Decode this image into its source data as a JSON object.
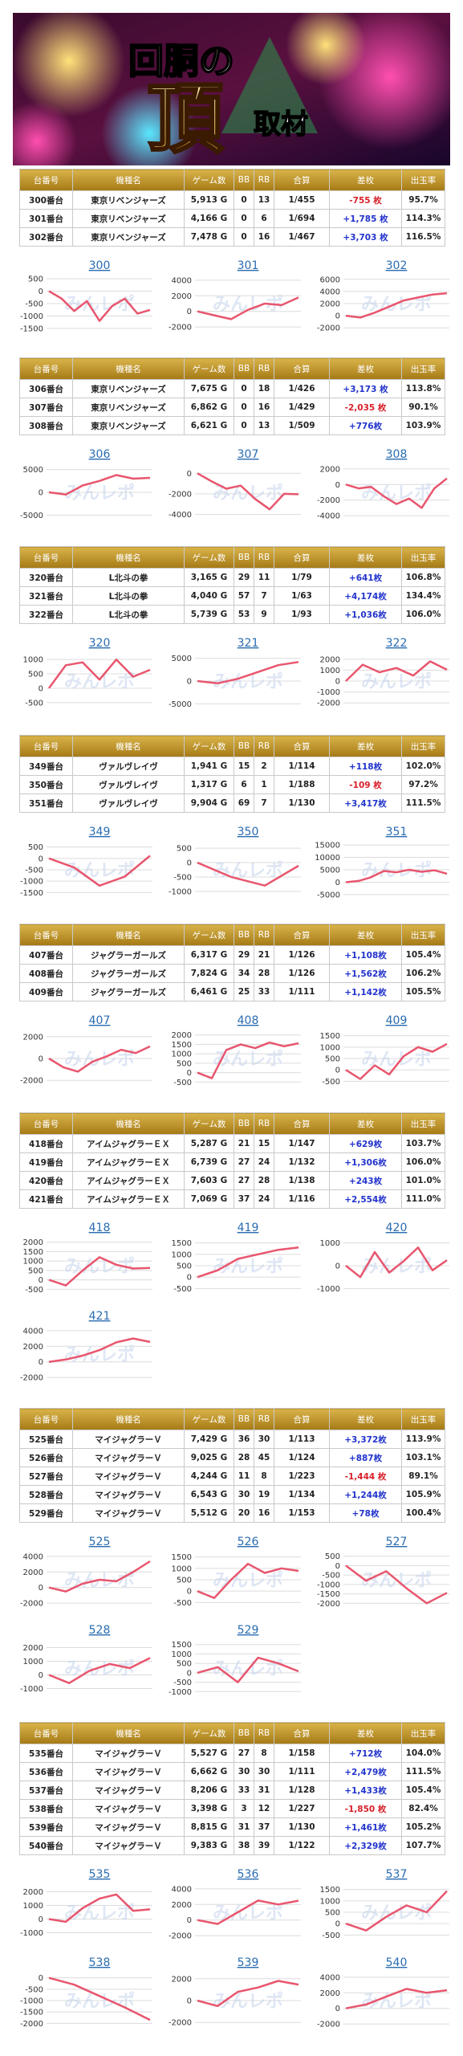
{
  "banner": {
    "title": "回胴の",
    "big": "頂",
    "sub": "取材"
  },
  "watermark": "みんレポ",
  "table_headers": [
    "台番号",
    "機種名",
    "ゲーム数",
    "BB",
    "RB",
    "合算",
    "差枚",
    "出玉率"
  ],
  "sections": [
    {
      "table": {
        "rows": [
          [
            "300番台",
            "東京リベンジャーズ",
            "5,913 G",
            "0",
            "13",
            "1/455",
            "-755 枚",
            "95.7%"
          ],
          [
            "301番台",
            "東京リベンジャーズ",
            "4,166 G",
            "0",
            "6",
            "1/694",
            "+1,785 枚",
            "114.3%"
          ],
          [
            "302番台",
            "東京リベンジャーズ",
            "7,478 G",
            "0",
            "16",
            "1/467",
            "+3,703 枚",
            "116.5%"
          ]
        ]
      },
      "charts": [
        {
          "type": "line",
          "title": "300",
          "ylim": [
            -1600,
            600
          ],
          "yticks": [
            500,
            0,
            -500,
            -1000,
            -1500
          ],
          "values": [
            0,
            -300,
            -800,
            -400,
            -1200,
            -600,
            -300,
            -900,
            -755
          ]
        },
        {
          "type": "line",
          "title": "301",
          "ylim": [
            -2500,
            4500
          ],
          "yticks": [
            4000,
            2000,
            0,
            -2000
          ],
          "values": [
            0,
            -500,
            -1000,
            200,
            1000,
            800,
            1785
          ]
        },
        {
          "type": "line",
          "title": "302",
          "ylim": [
            -2500,
            6500
          ],
          "yticks": [
            6000,
            4000,
            2000,
            0,
            -2000
          ],
          "values": [
            0,
            -300,
            500,
            1500,
            2500,
            3000,
            3500,
            3703
          ]
        }
      ]
    },
    {
      "table": {
        "rows": [
          [
            "306番台",
            "東京リベンジャーズ",
            "7,675 G",
            "0",
            "18",
            "1/426",
            "+3,173 枚",
            "113.8%"
          ],
          [
            "307番台",
            "東京リベンジャーズ",
            "6,862 G",
            "0",
            "16",
            "1/429",
            "-2,035 枚",
            "90.1%"
          ],
          [
            "308番台",
            "東京リベンジャーズ",
            "6,621 G",
            "0",
            "13",
            "1/509",
            "+776枚",
            "103.9%"
          ]
        ]
      },
      "charts": [
        {
          "type": "line",
          "title": "306",
          "ylim": [
            -6000,
            6000
          ],
          "yticks": [
            5000,
            0,
            -5000
          ],
          "values": [
            0,
            -500,
            1500,
            2500,
            3800,
            3000,
            3173
          ]
        },
        {
          "type": "line",
          "title": "307",
          "ylim": [
            -4500,
            800
          ],
          "yticks": [
            0,
            -2000,
            -4000
          ],
          "values": [
            0,
            -800,
            -1500,
            -1200,
            -2500,
            -3500,
            -2000,
            -2035
          ]
        },
        {
          "type": "line",
          "title": "308",
          "ylim": [
            -4500,
            2500
          ],
          "yticks": [
            2000,
            0,
            -2000,
            -4000
          ],
          "values": [
            0,
            -500,
            -300,
            -1500,
            -2500,
            -1800,
            -3000,
            -500,
            776
          ]
        }
      ]
    },
    {
      "table": {
        "rows": [
          [
            "320番台",
            "L北斗の拳",
            "3,165 G",
            "29",
            "11",
            "1/79",
            "+641枚",
            "106.8%"
          ],
          [
            "321番台",
            "L北斗の拳",
            "4,040 G",
            "57",
            "7",
            "1/63",
            "+4,174枚",
            "134.4%"
          ],
          [
            "322番台",
            "L北斗の拳",
            "5,739 G",
            "53",
            "9",
            "1/93",
            "+1,036枚",
            "106.0%"
          ]
        ]
      },
      "charts": [
        {
          "type": "line",
          "title": "320",
          "ylim": [
            -700,
            1200
          ],
          "yticks": [
            1000,
            500,
            0,
            -500
          ],
          "values": [
            0,
            800,
            900,
            300,
            1000,
            400,
            641
          ]
        },
        {
          "type": "line",
          "title": "321",
          "ylim": [
            -6000,
            6000
          ],
          "yticks": [
            5000,
            0,
            -5000
          ],
          "values": [
            0,
            -500,
            500,
            2000,
            3500,
            4174
          ]
        },
        {
          "type": "line",
          "title": "322",
          "ylim": [
            -2500,
            2500
          ],
          "yticks": [
            2000,
            1000,
            0,
            -1000,
            -2000
          ],
          "values": [
            0,
            1500,
            800,
            1200,
            500,
            1800,
            1036
          ]
        }
      ]
    },
    {
      "table": {
        "rows": [
          [
            "349番台",
            "ヴァルヴレイヴ",
            "1,941 G",
            "15",
            "2",
            "1/114",
            "+118枚",
            "102.0%"
          ],
          [
            "350番台",
            "ヴァルヴレイヴ",
            "1,317 G",
            "6",
            "1",
            "1/188",
            "-109 枚",
            "97.2%"
          ],
          [
            "351番台",
            "ヴァルヴレイヴ",
            "9,904 G",
            "69",
            "7",
            "1/130",
            "+3,417枚",
            "111.5%"
          ]
        ]
      },
      "charts": [
        {
          "type": "line",
          "title": "349",
          "ylim": [
            -1700,
            700
          ],
          "yticks": [
            500,
            0,
            -500,
            -1000,
            -1500
          ],
          "values": [
            0,
            -400,
            -1200,
            -800,
            118
          ]
        },
        {
          "type": "line",
          "title": "350",
          "ylim": [
            -1200,
            700
          ],
          "yticks": [
            500,
            0,
            -500,
            -1000
          ],
          "values": [
            0,
            -500,
            -800,
            -109
          ]
        },
        {
          "type": "line",
          "title": "351",
          "ylim": [
            -6000,
            16000
          ],
          "yticks": [
            15000,
            10000,
            5000,
            0,
            -5000
          ],
          "values": [
            0,
            500,
            2000,
            4500,
            4000,
            5000,
            4200,
            4800,
            3417
          ]
        }
      ]
    },
    {
      "table": {
        "rows": [
          [
            "407番台",
            "ジャグラーガールズ",
            "6,317 G",
            "29",
            "21",
            "1/126",
            "+1,108枚",
            "105.4%"
          ],
          [
            "408番台",
            "ジャグラーガールズ",
            "7,824 G",
            "34",
            "28",
            "1/126",
            "+1,562枚",
            "106.2%"
          ],
          [
            "409番台",
            "ジャグラーガールズ",
            "6,461 G",
            "25",
            "33",
            "1/111",
            "+1,142枚",
            "105.5%"
          ]
        ]
      },
      "charts": [
        {
          "type": "line",
          "title": "407",
          "ylim": [
            -2500,
            2500
          ],
          "yticks": [
            2000,
            0,
            -2000
          ],
          "values": [
            0,
            -800,
            -1200,
            -300,
            200,
            800,
            500,
            1108
          ]
        },
        {
          "type": "line",
          "title": "408",
          "ylim": [
            -700,
            2200
          ],
          "yticks": [
            2000,
            1500,
            1000,
            500,
            0,
            -500
          ],
          "values": [
            0,
            -300,
            1200,
            1500,
            1300,
            1600,
            1400,
            1562
          ]
        },
        {
          "type": "line",
          "title": "409",
          "ylim": [
            -700,
            1700
          ],
          "yticks": [
            1500,
            1000,
            500,
            0,
            -500
          ],
          "values": [
            0,
            -400,
            200,
            -200,
            600,
            1000,
            800,
            1142
          ]
        }
      ]
    },
    {
      "table": {
        "rows": [
          [
            "418番台",
            "アイムジャグラーＥＸ",
            "5,287 G",
            "21",
            "15",
            "1/147",
            "+629枚",
            "103.7%"
          ],
          [
            "419番台",
            "アイムジャグラーＥＸ",
            "6,739 G",
            "27",
            "24",
            "1/132",
            "+1,306枚",
            "106.0%"
          ],
          [
            "420番台",
            "アイムジャグラーＥＸ",
            "7,603 G",
            "27",
            "28",
            "1/138",
            "+243枚",
            "101.0%"
          ],
          [
            "421番台",
            "アイムジャグラーＥＸ",
            "7,069 G",
            "37",
            "24",
            "1/116",
            "+2,554枚",
            "111.0%"
          ]
        ]
      },
      "charts": [
        {
          "type": "line",
          "title": "418",
          "ylim": [
            -700,
            2200
          ],
          "yticks": [
            2000,
            1500,
            1000,
            500,
            0,
            -500
          ],
          "values": [
            0,
            -300,
            500,
            1200,
            800,
            600,
            629
          ]
        },
        {
          "type": "line",
          "title": "419",
          "ylim": [
            -700,
            1700
          ],
          "yticks": [
            1500,
            1000,
            500,
            0,
            -500
          ],
          "values": [
            0,
            300,
            800,
            1000,
            1200,
            1306
          ]
        },
        {
          "type": "line",
          "title": "420",
          "ylim": [
            -1200,
            1200
          ],
          "yticks": [
            1000,
            0,
            -1000
          ],
          "values": [
            0,
            -500,
            600,
            -300,
            200,
            800,
            -200,
            243
          ]
        },
        {
          "type": "line",
          "title": "421",
          "ylim": [
            -2500,
            4500
          ],
          "yticks": [
            4000,
            2000,
            0,
            -2000
          ],
          "values": [
            0,
            300,
            800,
            1500,
            2500,
            3000,
            2554
          ]
        }
      ]
    },
    {
      "table": {
        "rows": [
          [
            "525番台",
            "マイジャグラーＶ",
            "7,429 G",
            "36",
            "30",
            "1/113",
            "+3,372枚",
            "113.9%"
          ],
          [
            "526番台",
            "マイジャグラーＶ",
            "9,025 G",
            "28",
            "45",
            "1/124",
            "+887枚",
            "103.1%"
          ],
          [
            "527番台",
            "マイジャグラーＶ",
            "4,244 G",
            "11",
            "8",
            "1/223",
            "-1,444 枚",
            "89.1%"
          ],
          [
            "528番台",
            "マイジャグラーＶ",
            "6,543 G",
            "30",
            "19",
            "1/134",
            "+1,244枚",
            "105.9%"
          ],
          [
            "529番台",
            "マイジャグラーＶ",
            "5,512 G",
            "20",
            "16",
            "1/153",
            "+78枚",
            "100.4%"
          ]
        ]
      },
      "charts": [
        {
          "type": "line",
          "title": "525",
          "ylim": [
            -2500,
            4500
          ],
          "yticks": [
            4000,
            2000,
            0,
            -2000
          ],
          "values": [
            0,
            -500,
            500,
            1000,
            800,
            2000,
            3372
          ]
        },
        {
          "type": "line",
          "title": "526",
          "ylim": [
            -700,
            1700
          ],
          "yticks": [
            1500,
            1000,
            500,
            0,
            -500
          ],
          "values": [
            0,
            -300,
            500,
            1200,
            800,
            1000,
            887
          ]
        },
        {
          "type": "line",
          "title": "527",
          "ylim": [
            -2200,
            700
          ],
          "yticks": [
            500,
            0,
            -500,
            -1000,
            -1500,
            -2000
          ],
          "values": [
            0,
            -800,
            -300,
            -1200,
            -2000,
            -1444
          ]
        },
        {
          "type": "line",
          "title": "528",
          "ylim": [
            -1500,
            2500
          ],
          "yticks": [
            2000,
            1000,
            0,
            -1000
          ],
          "values": [
            0,
            -600,
            300,
            800,
            500,
            1244
          ]
        },
        {
          "type": "line",
          "title": "529",
          "ylim": [
            -1200,
            1700
          ],
          "yticks": [
            1500,
            1000,
            500,
            0,
            -500,
            -1000
          ],
          "values": [
            0,
            300,
            -500,
            800,
            500,
            78
          ]
        }
      ]
    },
    {
      "table": {
        "rows": [
          [
            "535番台",
            "マイジャグラーＶ",
            "5,527 G",
            "27",
            "8",
            "1/158",
            "+712枚",
            "104.0%"
          ],
          [
            "536番台",
            "マイジャグラーＶ",
            "6,662 G",
            "30",
            "30",
            "1/111",
            "+2,479枚",
            "111.5%"
          ],
          [
            "537番台",
            "マイジャグラーＶ",
            "8,206 G",
            "33",
            "31",
            "1/128",
            "+1,433枚",
            "105.4%"
          ],
          [
            "538番台",
            "マイジャグラーＶ",
            "3,398 G",
            "3",
            "12",
            "1/227",
            "-1,850 枚",
            "82.4%"
          ],
          [
            "539番台",
            "マイジャグラーＶ",
            "8,815 G",
            "31",
            "37",
            "1/130",
            "+1,461枚",
            "105.2%"
          ],
          [
            "540番台",
            "マイジャグラーＶ",
            "9,383 G",
            "38",
            "39",
            "1/122",
            "+2,329枚",
            "107.7%"
          ]
        ]
      },
      "charts": [
        {
          "type": "line",
          "title": "535",
          "ylim": [
            -1500,
            2500
          ],
          "yticks": [
            2000,
            1000,
            0,
            -1000
          ],
          "values": [
            0,
            -200,
            800,
            1500,
            1800,
            600,
            712
          ]
        },
        {
          "type": "line",
          "title": "536",
          "ylim": [
            -2500,
            4500
          ],
          "yticks": [
            4000,
            2000,
            0,
            -2000
          ],
          "values": [
            0,
            -500,
            1000,
            2500,
            2000,
            2479
          ]
        },
        {
          "type": "line",
          "title": "537",
          "ylim": [
            -700,
            1700
          ],
          "yticks": [
            1500,
            1000,
            500,
            0,
            -500
          ],
          "values": [
            0,
            -300,
            300,
            800,
            500,
            1433
          ]
        },
        {
          "type": "line",
          "title": "538",
          "ylim": [
            -2200,
            200
          ],
          "yticks": [
            0,
            -500,
            -1000,
            -1500,
            -2000
          ],
          "values": [
            0,
            -300,
            -800,
            -1300,
            -1850
          ]
        },
        {
          "type": "line",
          "title": "539",
          "ylim": [
            -2500,
            2500
          ],
          "yticks": [
            2000,
            0,
            -2000
          ],
          "values": [
            0,
            -500,
            800,
            1200,
            1800,
            1461
          ]
        },
        {
          "type": "line",
          "title": "540",
          "ylim": [
            -2500,
            4500
          ],
          "yticks": [
            4000,
            2000,
            0,
            -2000
          ],
          "values": [
            0,
            500,
            1500,
            2500,
            2000,
            2329
          ]
        }
      ]
    }
  ]
}
